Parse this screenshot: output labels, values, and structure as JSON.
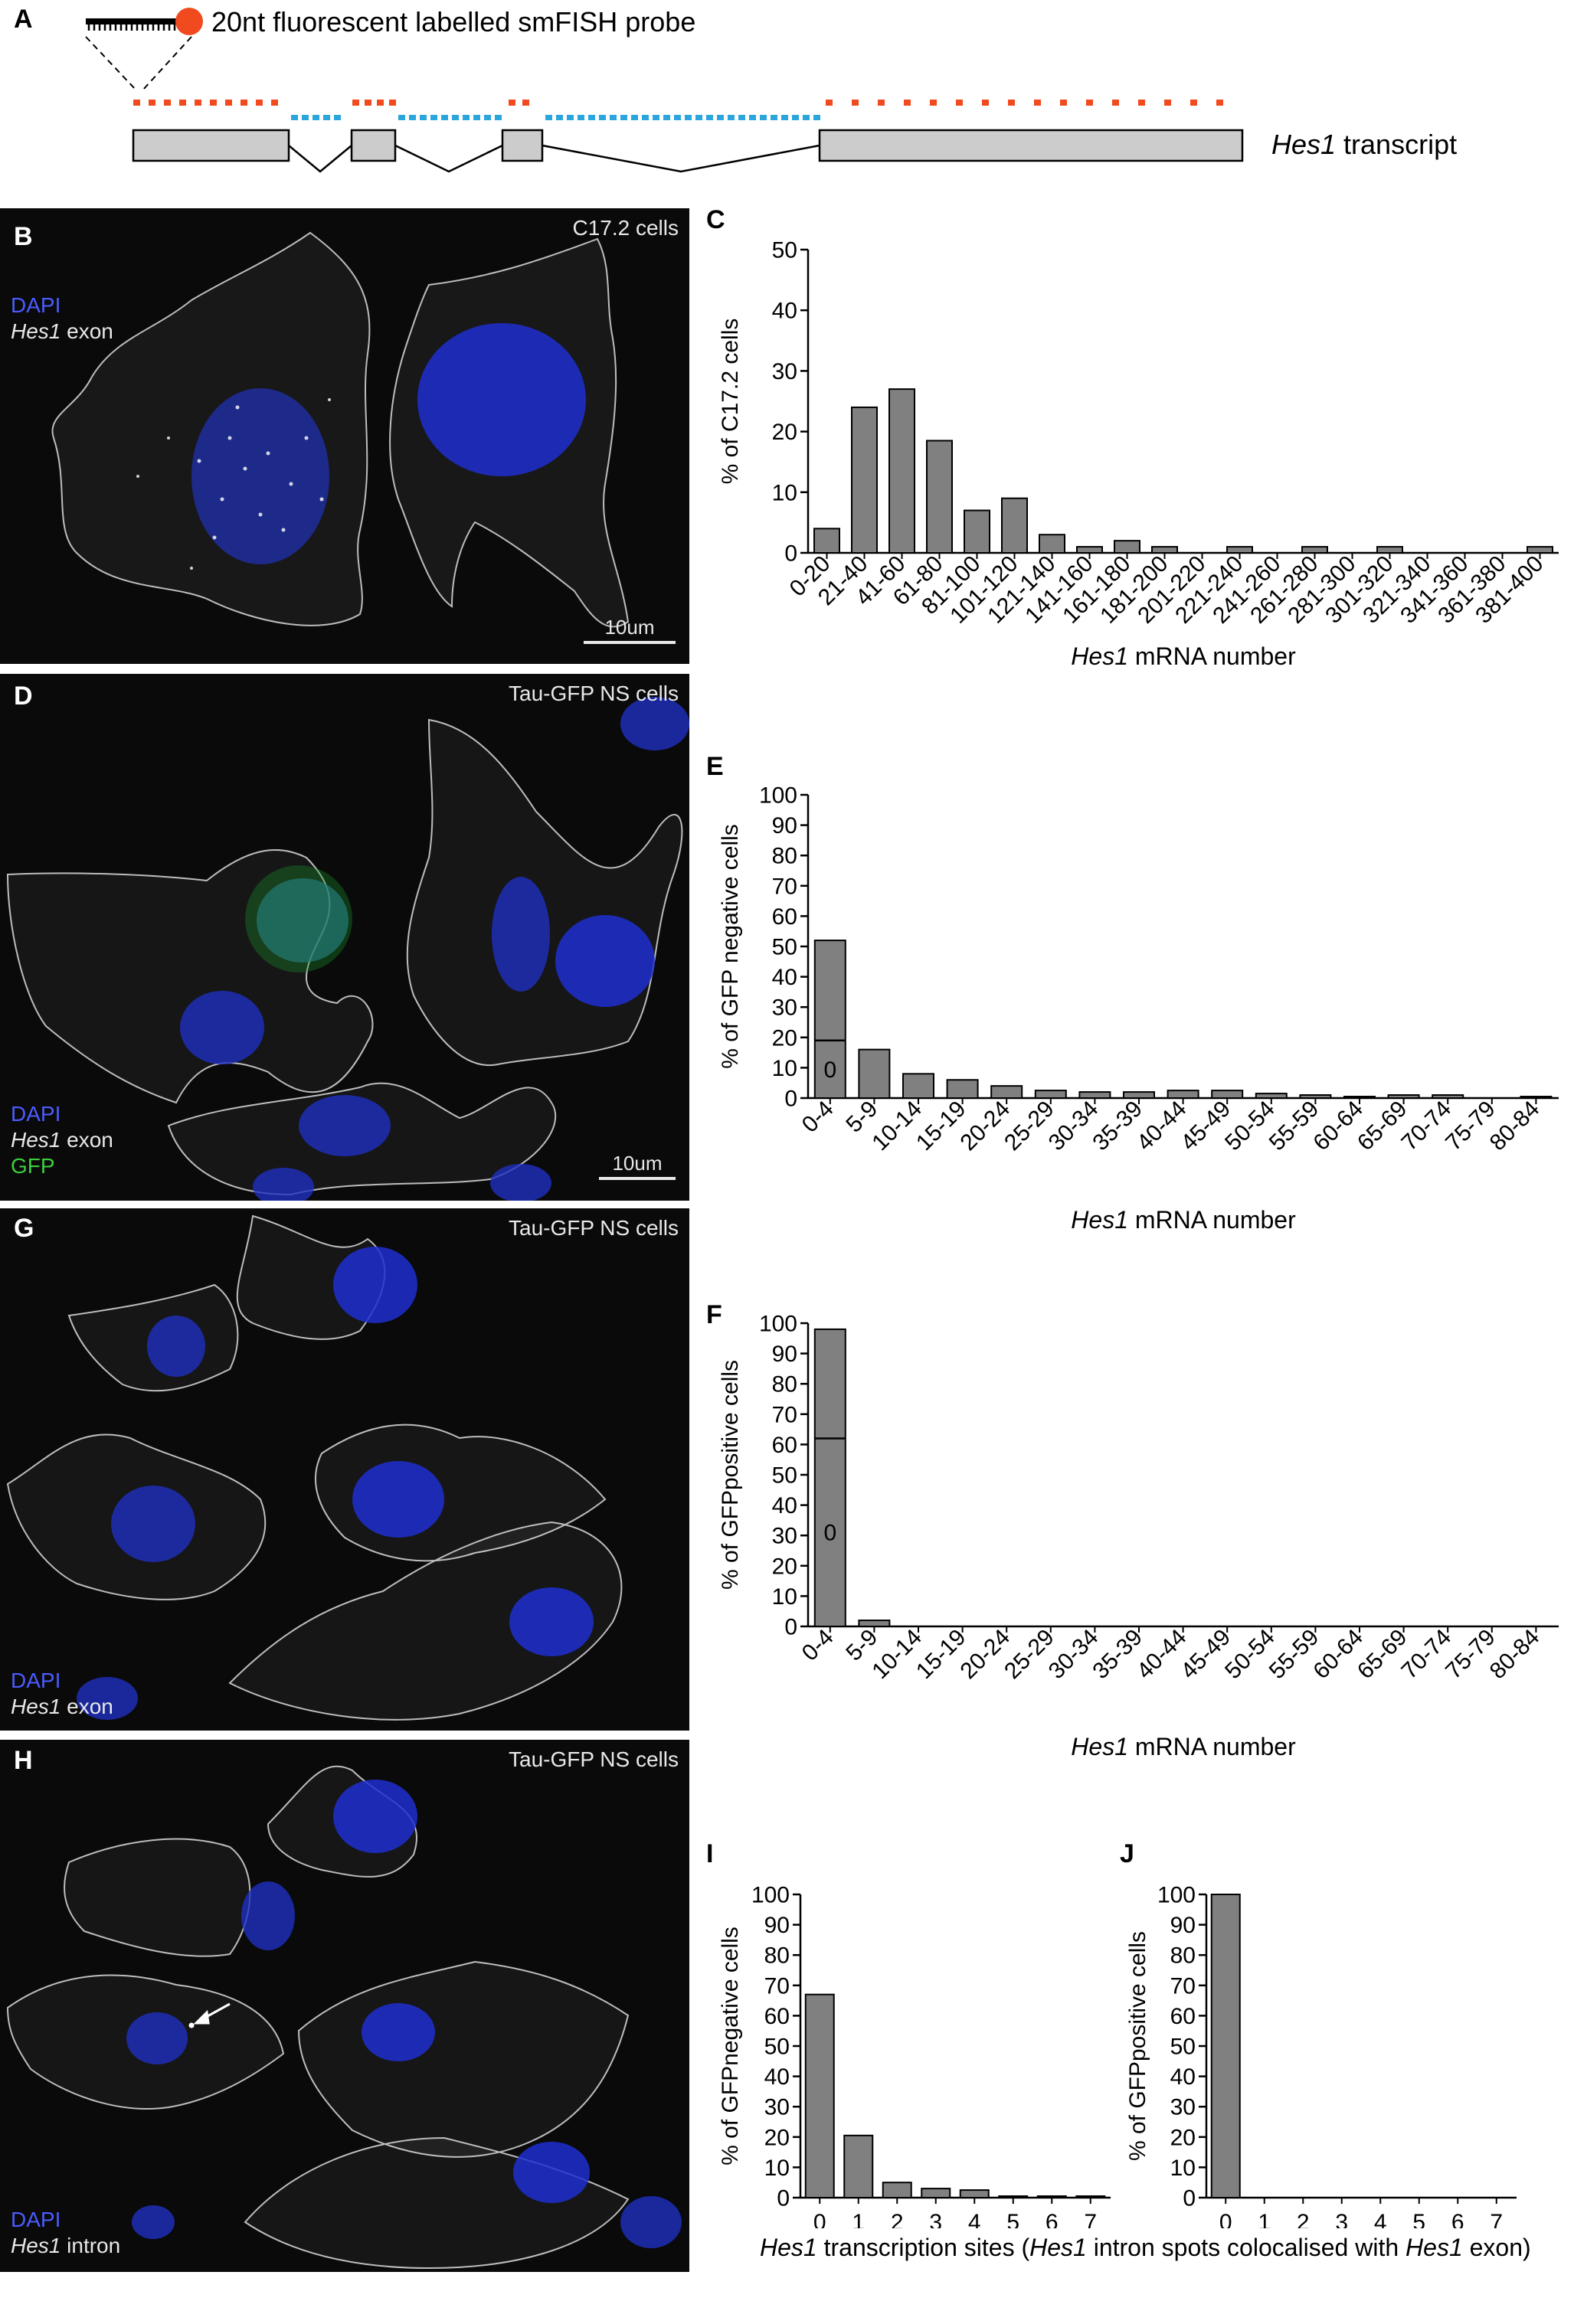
{
  "panel_a": {
    "label": "A",
    "probe_text": "20nt fluorescent labelled smFISH probe",
    "transcript_gene": "Hes1",
    "transcript_suffix": " transcript"
  },
  "panel_b": {
    "label": "B",
    "title": "C17.2 cells",
    "legend": [
      "DAPI",
      "Hes1",
      " exon"
    ],
    "scale": "10um"
  },
  "panel_d": {
    "label": "D",
    "title": "Tau-GFP NS cells",
    "legend": [
      "DAPI",
      "Hes1",
      " exon",
      "GFP"
    ],
    "scale": "10um"
  },
  "panel_g": {
    "label": "G",
    "title": "Tau-GFP NS cells",
    "legend": [
      "DAPI",
      "Hes1",
      " exon"
    ]
  },
  "panel_h": {
    "label": "H",
    "title": "Tau-GFP NS cells",
    "legend": [
      "DAPI",
      "Hes1",
      " intron"
    ]
  },
  "colors": {
    "bar": "#808080",
    "exon_probe": "#f04a1e",
    "intron_probe": "#2aa6dd",
    "dapi": "#4a5cff",
    "gfp": "#3ccf3c"
  },
  "chart_data": [
    {
      "id": "C",
      "type": "bar",
      "panel_label": "C",
      "categories": [
        "0-20",
        "21-40",
        "41-60",
        "61-80",
        "81-100",
        "101-120",
        "121-140",
        "141-160",
        "161-180",
        "181-200",
        "201-220",
        "221-240",
        "241-260",
        "261-280",
        "281-300",
        "301-320",
        "321-340",
        "341-360",
        "361-380",
        "381-400"
      ],
      "values": [
        4,
        24,
        27,
        18.5,
        7,
        9,
        3,
        1,
        2,
        1,
        0,
        1,
        0,
        1,
        0,
        1,
        0,
        0,
        0,
        1
      ],
      "ylabel": "% of C17.2 cells",
      "xlabel_italic": "Hes1",
      "xlabel_rest": " mRNA number",
      "ylim": [
        0,
        50
      ],
      "yticks": [
        0,
        10,
        20,
        30,
        40,
        50
      ]
    },
    {
      "id": "E",
      "type": "bar",
      "panel_label": "E",
      "categories": [
        "0-4",
        "5-9",
        "10-14",
        "15-19",
        "20-24",
        "25-29",
        "30-34",
        "35-39",
        "40-44",
        "45-49",
        "50-54",
        "55-59",
        "60-64",
        "65-69",
        "70-74",
        "75-79",
        "80-84"
      ],
      "values": [
        52,
        16,
        8,
        6,
        4,
        2.5,
        2,
        2,
        2.5,
        2.5,
        1.5,
        1,
        0.5,
        1,
        1,
        0,
        0.5
      ],
      "zero_segment": 19,
      "zero_label": "0",
      "ylabel": "% of GFP negative cells",
      "xlabel_italic": "Hes1",
      "xlabel_rest": " mRNA number",
      "ylim": [
        0,
        100
      ],
      "yticks": [
        0,
        10,
        20,
        30,
        40,
        50,
        60,
        70,
        80,
        90,
        100
      ]
    },
    {
      "id": "F",
      "type": "bar",
      "panel_label": "F",
      "categories": [
        "0-4",
        "5-9",
        "10-14",
        "15-19",
        "20-24",
        "25-29",
        "30-34",
        "35-39",
        "40-44",
        "45-49",
        "50-54",
        "55-59",
        "60-64",
        "65-69",
        "70-74",
        "75-79",
        "80-84"
      ],
      "values": [
        98,
        2,
        0,
        0,
        0,
        0,
        0,
        0,
        0,
        0,
        0,
        0,
        0,
        0,
        0,
        0,
        0
      ],
      "zero_segment": 62,
      "zero_label": "0",
      "ylabel": "% of GFPpositive cells",
      "xlabel_italic": "Hes1",
      "xlabel_rest": " mRNA number",
      "ylim": [
        0,
        100
      ],
      "yticks": [
        0,
        10,
        20,
        30,
        40,
        50,
        60,
        70,
        80,
        90,
        100
      ]
    },
    {
      "id": "I",
      "type": "bar",
      "panel_label": "I",
      "categories": [
        "0",
        "1",
        "2",
        "3",
        "4",
        "5",
        "6",
        "7"
      ],
      "values": [
        67,
        20.5,
        5,
        3,
        2.5,
        0.5,
        0.5,
        0.5
      ],
      "ylabel": "% of GFPnegative cells",
      "ylim": [
        0,
        100
      ],
      "yticks": [
        0,
        10,
        20,
        30,
        40,
        50,
        60,
        70,
        80,
        90,
        100
      ]
    },
    {
      "id": "J",
      "type": "bar",
      "panel_label": "J",
      "categories": [
        "0",
        "1",
        "2",
        "3",
        "4",
        "5",
        "6",
        "7"
      ],
      "values": [
        100,
        0,
        0,
        0,
        0,
        0,
        0,
        0
      ],
      "ylabel": "% of GFPpositive cells",
      "ylim": [
        0,
        100
      ],
      "yticks": [
        0,
        10,
        20,
        30,
        40,
        50,
        60,
        70,
        80,
        90,
        100
      ]
    }
  ],
  "shared_xlabel_ij": [
    "Hes1",
    " transcription sites (",
    "Hes1",
    " intron spots colocalised with ",
    "Hes1",
    " exon)"
  ]
}
